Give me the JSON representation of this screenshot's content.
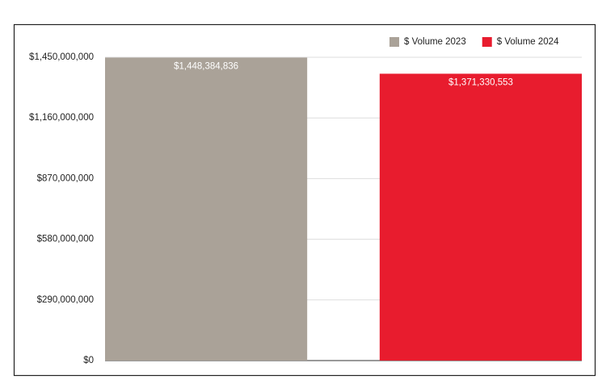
{
  "chart_data": {
    "type": "bar",
    "categories": [
      null
    ],
    "series": [
      {
        "name": "$ Volume 2023",
        "color": "#aaa298",
        "values": [
          1448384836
        ],
        "value_labels": [
          "$1,448,384,836"
        ]
      },
      {
        "name": "$ Volume 2024",
        "color": "#e81c2e",
        "values": [
          1371330553
        ],
        "value_labels": [
          "$1,371,330,553"
        ]
      }
    ],
    "ylim": [
      0,
      1450000000
    ],
    "yticks": [
      {
        "value": 0,
        "label": "$0"
      },
      {
        "value": 290000000,
        "label": "$290,000,000"
      },
      {
        "value": 580000000,
        "label": "$580,000,000"
      },
      {
        "value": 870000000,
        "label": "$870,000,000"
      },
      {
        "value": 1160000000,
        "label": "$1,160,000,000"
      },
      {
        "value": 1450000000,
        "label": "$1,450,000,000"
      }
    ],
    "grid": true,
    "legend": "top-right"
  }
}
